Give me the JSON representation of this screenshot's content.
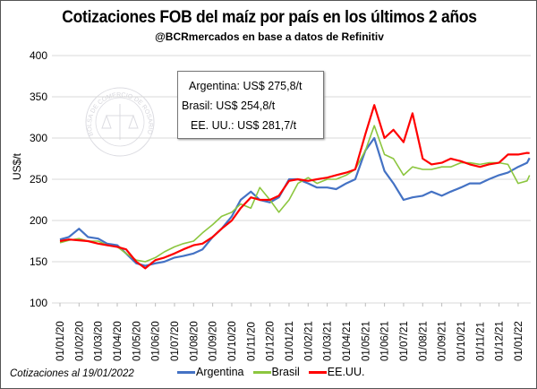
{
  "chart_data": {
    "type": "line",
    "title": "Cotizaciones FOB del maíz por país en los últimos 2 años",
    "subtitle": "@BCRmercados  en base a datos de Refinitiv",
    "ylabel": "US$/t",
    "ylim": [
      100,
      400
    ],
    "yticks": [
      "100",
      "150",
      "200",
      "250",
      "300",
      "350",
      "400"
    ],
    "xticks": [
      "01/01/20",
      "01/02/20",
      "01/03/20",
      "01/04/20",
      "01/05/20",
      "01/06/20",
      "01/07/20",
      "01/08/20",
      "01/09/20",
      "01/10/20",
      "01/11/20",
      "01/12/20",
      "01/01/21",
      "01/02/21",
      "01/03/21",
      "01/04/21",
      "01/05/21",
      "01/06/21",
      "01/07/21",
      "01/08/21",
      "01/09/21",
      "01/10/21",
      "01/11/21",
      "01/12/21",
      "01/01/22"
    ],
    "grid": "horizontal",
    "legend_position": "bottom",
    "x": [
      "01/01/20",
      "15/01/20",
      "01/02/20",
      "15/02/20",
      "01/03/20",
      "15/03/20",
      "01/04/20",
      "15/04/20",
      "01/05/20",
      "15/05/20",
      "01/06/20",
      "15/06/20",
      "01/07/20",
      "15/07/20",
      "01/08/20",
      "15/08/20",
      "01/09/20",
      "15/09/20",
      "01/10/20",
      "15/10/20",
      "01/11/20",
      "15/11/20",
      "01/12/20",
      "15/12/20",
      "01/01/21",
      "15/01/21",
      "01/02/21",
      "15/02/21",
      "01/03/21",
      "15/03/21",
      "01/04/21",
      "15/04/21",
      "01/05/21",
      "15/05/21",
      "01/06/21",
      "15/06/21",
      "01/07/21",
      "15/07/21",
      "01/08/21",
      "15/08/21",
      "01/09/21",
      "15/09/21",
      "01/10/21",
      "15/10/21",
      "01/11/21",
      "15/11/21",
      "01/12/21",
      "15/12/21",
      "01/01/22",
      "15/01/22",
      "19/01/22"
    ],
    "series": [
      {
        "name": "Argentina",
        "color": "#4472c4",
        "values": [
          177,
          180,
          190,
          180,
          178,
          172,
          170,
          160,
          148,
          145,
          148,
          150,
          155,
          157,
          160,
          165,
          180,
          190,
          205,
          225,
          235,
          225,
          222,
          228,
          250,
          250,
          245,
          240,
          240,
          238,
          245,
          250,
          285,
          300,
          260,
          245,
          225,
          228,
          230,
          235,
          230,
          235,
          240,
          245,
          245,
          250,
          255,
          258,
          265,
          270,
          275.8
        ]
      },
      {
        "name": "Brasil",
        "color": "#8cc63f",
        "values": [
          173,
          176,
          178,
          175,
          175,
          170,
          168,
          160,
          152,
          150,
          155,
          162,
          168,
          172,
          175,
          185,
          195,
          205,
          210,
          220,
          215,
          240,
          225,
          210,
          225,
          245,
          252,
          245,
          250,
          250,
          255,
          262,
          285,
          315,
          280,
          275,
          255,
          265,
          262,
          262,
          265,
          265,
          270,
          270,
          268,
          270,
          270,
          268,
          245,
          248,
          254.8
        ]
      },
      {
        "name": "EE.UU.",
        "color": "#ff0000",
        "values": [
          175,
          177,
          176,
          175,
          172,
          170,
          168,
          165,
          150,
          142,
          152,
          155,
          160,
          165,
          170,
          172,
          180,
          190,
          200,
          215,
          228,
          225,
          225,
          230,
          248,
          250,
          248,
          250,
          252,
          255,
          258,
          262,
          305,
          340,
          300,
          310,
          295,
          330,
          275,
          268,
          270,
          275,
          272,
          268,
          265,
          268,
          270,
          280,
          280,
          282,
          281.7
        ]
      }
    ]
  },
  "info_box": {
    "argentina": "Argentina: US$ 275,8/t",
    "brasil": "Brasil: US$ 254,8/t",
    "eeuu": "EE. UU.: US$ 281,7/t"
  },
  "footnote": "Cotizaciones al 19/01/2022",
  "logo_text": "BOLSA DE COMERCIO DE ROSARIO"
}
